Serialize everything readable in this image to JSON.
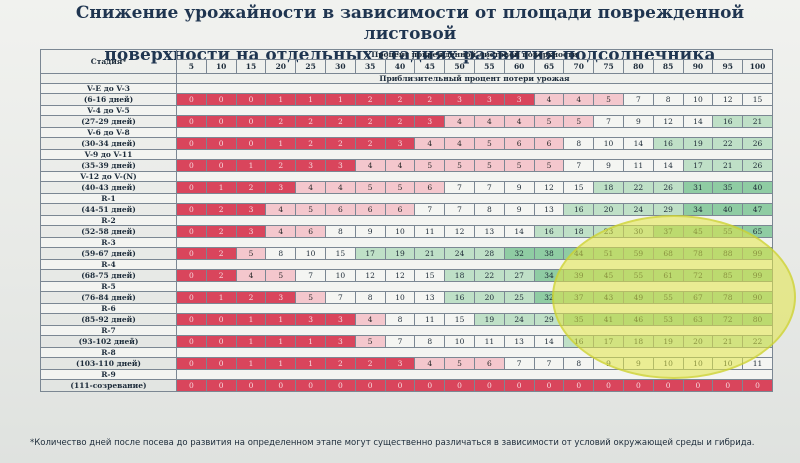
{
  "title_line1": "Снижение урожайности в зависимости от площади поврежденной листовой",
  "title_line2": "поверхности на отдельных стадиях развития подсолнечника",
  "header": {
    "damage_label": "Процент поврежденной листовой поверхности",
    "stage_label": "Стадия*",
    "loss_label": "Приблизительный процент потери урожая",
    "columns": [
      "5",
      "10",
      "15",
      "20",
      "25",
      "30",
      "35",
      "40",
      "45",
      "50",
      "55",
      "60",
      "65",
      "70",
      "75",
      "80",
      "85",
      "90",
      "95",
      "100"
    ]
  },
  "rows": [
    {
      "stage": "V-E до V-3",
      "days": "(6-16 дней)",
      "values": [
        "0",
        "0",
        "0",
        "1",
        "1",
        "1",
        "2",
        "2",
        "2",
        "3",
        "3",
        "3",
        "4",
        "4",
        "5",
        "7",
        "8",
        "10",
        "12",
        "15"
      ]
    },
    {
      "stage": "V-4 до V-5",
      "days": "(27-29 дней)",
      "values": [
        "0",
        "0",
        "0",
        "2",
        "2",
        "2",
        "2",
        "2",
        "3",
        "4",
        "4",
        "4",
        "5",
        "5",
        "7",
        "9",
        "12",
        "14",
        "16",
        "21"
      ]
    },
    {
      "stage": "V-6 до V-8",
      "days": "(30-34 дней)",
      "values": [
        "0",
        "0",
        "0",
        "1",
        "2",
        "2",
        "2",
        "3",
        "4",
        "4",
        "5",
        "6",
        "6",
        "8",
        "10",
        "14",
        "16",
        "19",
        "22",
        "26"
      ]
    },
    {
      "stage": "V-9 до V-11",
      "days": "(35-39 дней)",
      "values": [
        "0",
        "0",
        "1",
        "2",
        "3",
        "3",
        "4",
        "4",
        "5",
        "5",
        "5",
        "5",
        "5",
        "7",
        "9",
        "11",
        "14",
        "17",
        "21",
        "26"
      ]
    },
    {
      "stage": "V-12 до V-(N)",
      "days": "(40-43 дней)",
      "values": [
        "0",
        "1",
        "2",
        "3",
        "4",
        "4",
        "5",
        "5",
        "6",
        "7",
        "7",
        "9",
        "12",
        "15",
        "18",
        "22",
        "26",
        "31",
        "35",
        "40"
      ]
    },
    {
      "stage": "R-1",
      "days": "(44-51 дней)",
      "values": [
        "0",
        "2",
        "3",
        "4",
        "5",
        "6",
        "6",
        "6",
        "7",
        "7",
        "8",
        "9",
        "13",
        "16",
        "20",
        "24",
        "29",
        "34",
        "40",
        "47"
      ]
    },
    {
      "stage": "R-2",
      "days": "(52-58 дней)",
      "values": [
        "0",
        "2",
        "3",
        "4",
        "6",
        "8",
        "9",
        "10",
        "11",
        "12",
        "13",
        "14",
        "16",
        "18",
        "23",
        "30",
        "37",
        "45",
        "55",
        "65"
      ]
    },
    {
      "stage": "R-3",
      "days": "(59-67 дней)",
      "values": [
        "0",
        "2",
        "5",
        "8",
        "10",
        "15",
        "17",
        "19",
        "21",
        "24",
        "28",
        "32",
        "38",
        "44",
        "51",
        "59",
        "68",
        "78",
        "88",
        "99"
      ]
    },
    {
      "stage": "R-4",
      "days": "(68-75 дней)",
      "values": [
        "0",
        "2",
        "4",
        "5",
        "7",
        "10",
        "12",
        "12",
        "15",
        "18",
        "22",
        "27",
        "34",
        "39",
        "45",
        "55",
        "61",
        "72",
        "85",
        "99"
      ]
    },
    {
      "stage": "R-5",
      "days": "(76-84 дней)",
      "values": [
        "0",
        "1",
        "2",
        "3",
        "5",
        "7",
        "8",
        "10",
        "13",
        "16",
        "20",
        "25",
        "32",
        "37",
        "43",
        "49",
        "55",
        "67",
        "78",
        "90"
      ]
    },
    {
      "stage": "R-6",
      "days": "(85-92 дней)",
      "values": [
        "0",
        "0",
        "1",
        "1",
        "3",
        "3",
        "4",
        "8",
        "11",
        "15",
        "19",
        "24",
        "29",
        "35",
        "41",
        "46",
        "53",
        "63",
        "72",
        "80"
      ]
    },
    {
      "stage": "R-7",
      "days": "(93-102 дней)",
      "values": [
        "0",
        "0",
        "1",
        "1",
        "1",
        "3",
        "5",
        "7",
        "8",
        "10",
        "11",
        "13",
        "14",
        "16",
        "17",
        "18",
        "19",
        "20",
        "21",
        "22"
      ]
    },
    {
      "stage": "R-8",
      "days": "(103-110 дней)",
      "values": [
        "0",
        "0",
        "1",
        "1",
        "1",
        "2",
        "2",
        "3",
        "4",
        "5",
        "6",
        "7",
        "7",
        "8",
        "9",
        "9",
        "10",
        "10",
        "10",
        "11"
      ]
    },
    {
      "stage": "R-9",
      "days": "(111-созревание)",
      "values": [
        "0",
        "0",
        "0",
        "0",
        "0",
        "0",
        "0",
        "0",
        "0",
        "0",
        "0",
        "0",
        "0",
        "0",
        "0",
        "0",
        "0",
        "0",
        "0",
        "0"
      ]
    }
  ],
  "footnote": "*Количество дней после посева до развития на определенном этапе могут существенно различаться в зависимости от условий окружающей среды и гибрида.",
  "colors": {
    "red": "#d9455c",
    "pink": "#f4c7cd",
    "light_green": "#bfe0c7",
    "green": "#8fcca3",
    "highlight_ellipse": "#e2e646"
  }
}
